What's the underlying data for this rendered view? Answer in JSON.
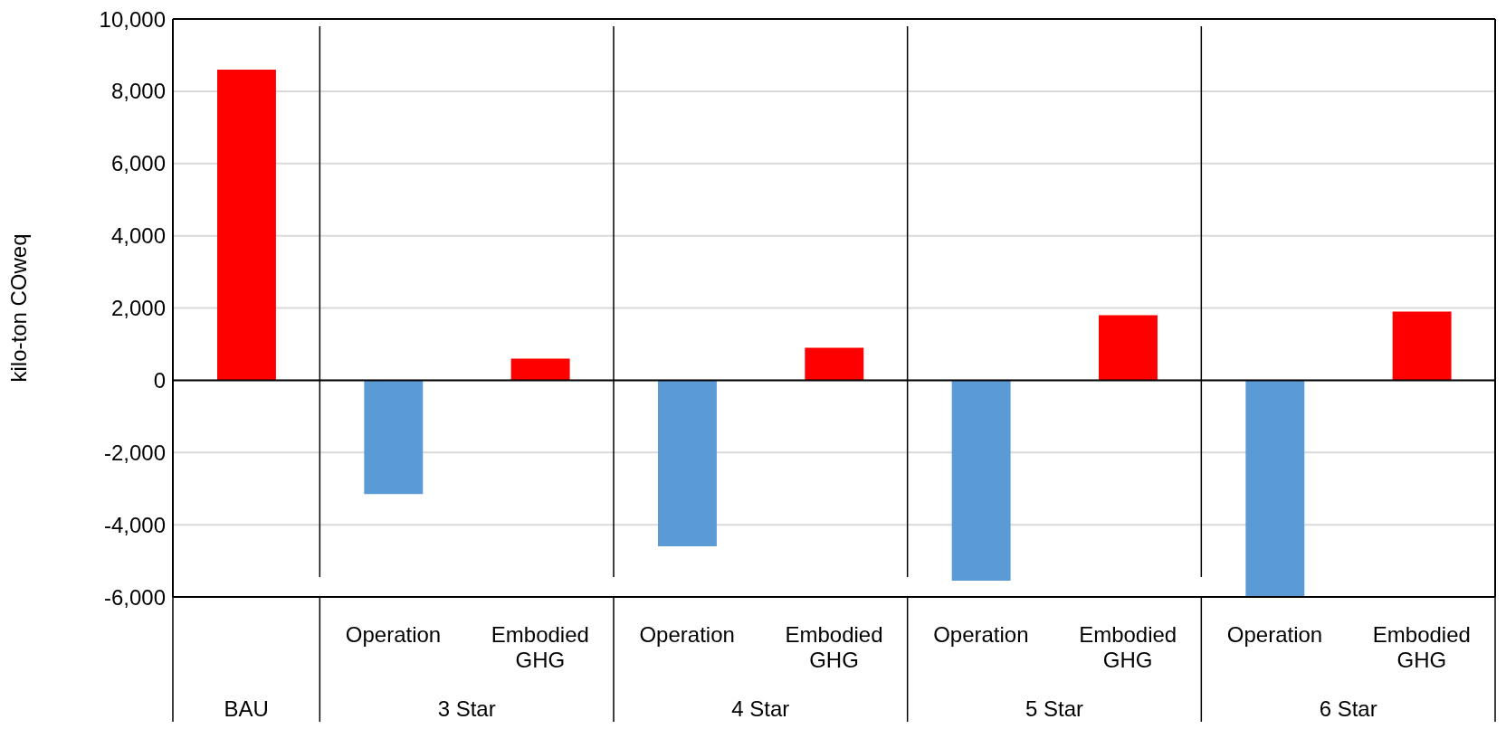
{
  "chart_data": {
    "type": "bar",
    "ylabel": "kilo-ton COweq",
    "categories": [
      null,
      "Operation",
      "Embodied GHG",
      "Operation",
      "Embodied GHG",
      "Operation",
      "Embodied GHG",
      "Operation",
      "Embodied GHG"
    ],
    "values": [
      8600,
      -3150,
      600,
      -4600,
      900,
      -5550,
      1800,
      -6000,
      1900
    ],
    "colors": [
      "#ff0000",
      "#5b9bd5",
      "#ff0000",
      "#5b9bd5",
      "#ff0000",
      "#5b9bd5",
      "#ff0000",
      "#5b9bd5",
      "#ff0000"
    ],
    "ylim": [
      -6000,
      10000
    ],
    "yticks": [
      {
        "value": -6000,
        "label": "-6,000"
      },
      {
        "value": -4000,
        "label": "-4,000"
      },
      {
        "value": -2000,
        "label": "-2,000"
      },
      0,
      {
        "value": 2000,
        "label": "2,000"
      },
      {
        "value": 4000,
        "label": "4,000"
      },
      {
        "value": 6000,
        "label": "6,000"
      },
      {
        "value": 8000,
        "label": "8,000"
      },
      {
        "value": 10000,
        "label": "10,000"
      }
    ],
    "grid": "y",
    "annotations": [
      "BAU",
      "3 Star",
      "4 Star",
      "5 Star",
      "6 Star"
    ]
  }
}
